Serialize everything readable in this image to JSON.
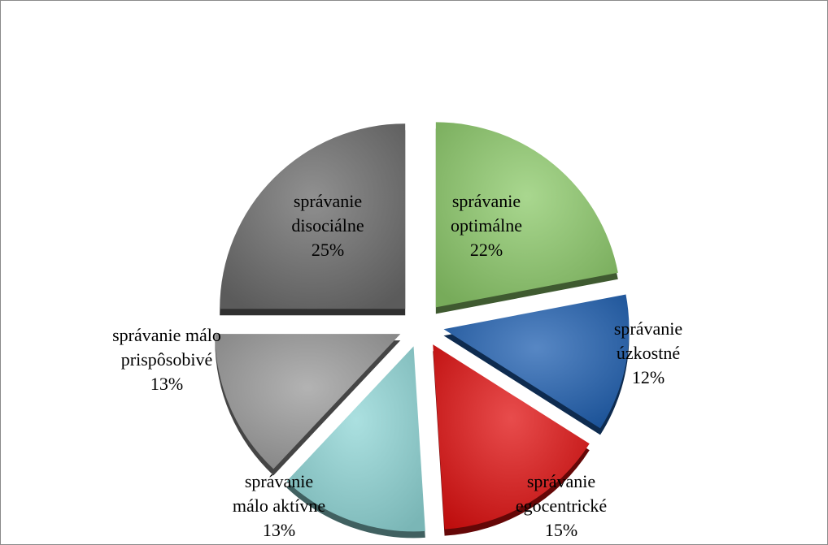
{
  "chart_data": {
    "type": "pie",
    "title": "",
    "style": "exploded-3d",
    "slices": [
      {
        "line1": "správanie",
        "line2": "optimálne",
        "value": 22,
        "pct": "22%",
        "color": "#8cc96a",
        "label_pos": "inside"
      },
      {
        "line1": "správanie",
        "line2": "úzkostné",
        "value": 12,
        "pct": "12%",
        "color": "#1f5fb0",
        "label_pos": "outside"
      },
      {
        "line1": "správanie",
        "line2": "egocentrické",
        "value": 15,
        "pct": "15%",
        "color": "#e01010",
        "label_pos": "outside"
      },
      {
        "line1": "správanie",
        "line2": "málo aktívne",
        "value": 13,
        "pct": "13%",
        "color": "#8fd6d6",
        "label_pos": "outside"
      },
      {
        "line1": "správanie málo",
        "line2": "prispôsobivé",
        "value": 13,
        "pct": "13%",
        "color": "#9a9a9a",
        "label_pos": "outside"
      },
      {
        "line1": "správanie",
        "line2": "disociálne",
        "value": 25,
        "pct": "25%",
        "color": "#6b6b6b",
        "label_pos": "inside"
      }
    ]
  }
}
